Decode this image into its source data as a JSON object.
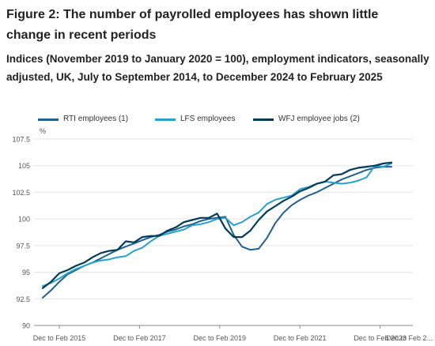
{
  "figure": {
    "title": "Figure 2: The number of payrolled employees has shown little change in recent periods",
    "subtitle": "Indices (November 2019 to January 2020 = 100), employment indicators, seasonally adjusted, UK, July to September 2014, to December 2024 to February 2025"
  },
  "legend": {
    "items": [
      {
        "label": "RTI employees (1)",
        "color": "#206095"
      },
      {
        "label": "LFS employees",
        "color": "#27a0cc"
      },
      {
        "label": "WFJ employee jobs (2)",
        "color": "#003c57"
      }
    ]
  },
  "chart_data": {
    "type": "line",
    "y_unit": "%",
    "ylim": [
      90,
      107.5
    ],
    "y_ticks": [
      "90",
      "92.5",
      "95",
      "97.5",
      "100",
      "102.5",
      "105",
      "107.5"
    ],
    "x_tick_labels": [
      "Dec to Feb 2015",
      "Dec to Feb 2017",
      "Dec to Feb 2019",
      "Dec to Feb 2021",
      "Dec to Feb 2023",
      "Dec to Feb 2..."
    ],
    "x_start": "Jul to Sep 2014",
    "x_end": "Dec to Feb 2025",
    "grid": "horizontal",
    "series": [
      {
        "name": "RTI employees (1)",
        "color": "#206095",
        "x": [
          "Jul to Sep 2014",
          "Oct to Dec 2014",
          "Jan to Mar 2015",
          "Apr to Jun 2015",
          "Jul to Sep 2015",
          "Oct to Dec 2015",
          "Jan to Mar 2016",
          "Apr to Jun 2016",
          "Jul to Sep 2016",
          "Oct to Dec 2016",
          "Jan to Mar 2017",
          "Apr to Jun 2017",
          "Jul to Sep 2017",
          "Oct to Dec 2017",
          "Jan to Mar 2018",
          "Apr to Jun 2018",
          "Jul to Sep 2018",
          "Oct to Dec 2018",
          "Jan to Mar 2019",
          "Apr to Jun 2019",
          "Jul to Sep 2019",
          "Oct to Dec 2019",
          "Jan to Mar 2020",
          "Apr to Jun 2020",
          "Jul to Sep 2020",
          "Oct to Dec 2020",
          "Jan to Mar 2021",
          "Apr to Jun 2021",
          "Jul to Sep 2021",
          "Oct to Dec 2021",
          "Jan to Mar 2022",
          "Apr to Jun 2022",
          "Jul to Sep 2022",
          "Oct to Dec 2022",
          "Jan to Mar 2023",
          "Apr to Jun 2023",
          "Jul to Sep 2023",
          "Oct to Dec 2023",
          "Jan to Mar 2024",
          "Apr to Jun 2024",
          "Jul to Sep 2024",
          "Oct to Dec 2024",
          "Dec to Feb 2025"
        ],
        "values": [
          92.6,
          93.3,
          94.1,
          94.8,
          95.2,
          95.6,
          95.9,
          96.3,
          96.7,
          97.1,
          97.4,
          97.7,
          98.0,
          98.3,
          98.5,
          98.8,
          99.0,
          99.3,
          99.5,
          99.8,
          100.0,
          100.1,
          100.2,
          98.5,
          97.4,
          97.1,
          97.2,
          98.2,
          99.6,
          100.6,
          101.3,
          101.8,
          102.2,
          102.5,
          102.9,
          103.3,
          103.7,
          104.0,
          104.3,
          104.6,
          104.8,
          104.9,
          104.9
        ]
      },
      {
        "name": "LFS employees",
        "color": "#27a0cc",
        "x": [
          "Jul to Sep 2014",
          "Oct to Dec 2014",
          "Jan to Mar 2015",
          "Apr to Jun 2015",
          "Jul to Sep 2015",
          "Oct to Dec 2015",
          "Jan to Mar 2016",
          "Apr to Jun 2016",
          "Jul to Sep 2016",
          "Oct to Dec 2016",
          "Jan to Mar 2017",
          "Apr to Jun 2017",
          "Jul to Sep 2017",
          "Oct to Dec 2017",
          "Jan to Mar 2018",
          "Apr to Jun 2018",
          "Jul to Sep 2018",
          "Oct to Dec 2018",
          "Jan to Mar 2019",
          "Apr to Jun 2019",
          "Jul to Sep 2019",
          "Oct to Dec 2019",
          "Jan to Mar 2020",
          "Apr to Jun 2020",
          "Jul to Sep 2020",
          "Oct to Dec 2020",
          "Jan to Mar 2021",
          "Apr to Jun 2021",
          "Jul to Sep 2021",
          "Oct to Dec 2021",
          "Jan to Mar 2022",
          "Apr to Jun 2022",
          "Jul to Sep 2022",
          "Oct to Dec 2022",
          "Jan to Mar 2023",
          "Apr to Jun 2023",
          "Jul to Sep 2023",
          "Oct to Dec 2023",
          "Jan to Mar 2024",
          "Apr to Jun 2024",
          "Jul to Sep 2024",
          "Oct to Dec 2024",
          "Dec to Feb 2025"
        ],
        "values": [
          93.7,
          94.0,
          94.4,
          94.9,
          95.3,
          95.6,
          95.9,
          96.1,
          96.2,
          96.4,
          96.5,
          97.0,
          97.3,
          97.9,
          98.4,
          98.6,
          98.8,
          99.0,
          99.4,
          99.5,
          99.7,
          100.0,
          100.1,
          99.4,
          99.7,
          100.2,
          100.6,
          101.4,
          101.8,
          102.0,
          102.2,
          102.8,
          103.0,
          103.3,
          103.5,
          103.4,
          103.3,
          103.4,
          103.6,
          103.9,
          105.0,
          104.9,
          105.2
        ]
      },
      {
        "name": "WFJ employee jobs (2)",
        "color": "#003c57",
        "x": [
          "Jul to Sep 2014",
          "Oct to Dec 2014",
          "Jan to Mar 2015",
          "Apr to Jun 2015",
          "Jul to Sep 2015",
          "Oct to Dec 2015",
          "Jan to Mar 2016",
          "Apr to Jun 2016",
          "Jul to Sep 2016",
          "Oct to Dec 2016",
          "Jan to Mar 2017",
          "Apr to Jun 2017",
          "Jul to Sep 2017",
          "Oct to Dec 2017",
          "Jan to Mar 2018",
          "Apr to Jun 2018",
          "Jul to Sep 2018",
          "Oct to Dec 2018",
          "Jan to Mar 2019",
          "Apr to Jun 2019",
          "Jul to Sep 2019",
          "Oct to Dec 2019",
          "Jan to Mar 2020",
          "Apr to Jun 2020",
          "Jul to Sep 2020",
          "Oct to Dec 2020",
          "Jan to Mar 2021",
          "Apr to Jun 2021",
          "Jul to Sep 2021",
          "Oct to Dec 2021",
          "Jan to Mar 2022",
          "Apr to Jun 2022",
          "Jul to Sep 2022",
          "Oct to Dec 2022",
          "Jan to Mar 2023",
          "Apr to Jun 2023",
          "Jul to Sep 2023",
          "Oct to Dec 2023",
          "Jan to Mar 2024",
          "Apr to Jun 2024",
          "Jul to Sep 2024",
          "Oct to Dec 2024",
          "Dec to Feb 2025"
        ],
        "values": [
          93.5,
          94.1,
          94.9,
          95.2,
          95.6,
          95.9,
          96.4,
          96.8,
          97.0,
          97.1,
          97.9,
          97.8,
          98.3,
          98.4,
          98.4,
          98.9,
          99.2,
          99.7,
          99.9,
          100.1,
          100.1,
          100.5,
          99.1,
          98.3,
          98.3,
          98.9,
          99.9,
          100.7,
          101.2,
          101.7,
          102.1,
          102.6,
          102.9,
          103.3,
          103.5,
          104.1,
          104.2,
          104.6,
          104.8,
          104.9,
          105.0,
          105.2,
          105.3
        ]
      }
    ]
  }
}
